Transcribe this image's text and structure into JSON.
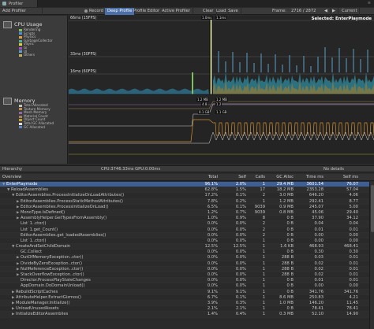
{
  "window": {
    "tab_title": "Profiler"
  },
  "toolbar": {
    "add_profiler": "Add Profiler",
    "record": "Record",
    "deep_profile": "Deep Profile",
    "profile_editor": "Profile Editor",
    "active_profiler": "Active Profiler",
    "clear": "Clear",
    "load": "Load",
    "save": "Save",
    "frame_label": "Frame:",
    "frame_value": "2716 / 2872",
    "selected": "Selected: EnterPlaymode"
  },
  "cpu_panel": {
    "title": "CPU Usage",
    "items": [
      {
        "label": "Rendering",
        "color": "#86c060"
      },
      {
        "label": "Scripts",
        "color": "#4a90d9"
      },
      {
        "label": "Physics",
        "color": "#e0a040"
      },
      {
        "label": "GarbageCollector",
        "color": "#50b0a0"
      },
      {
        "label": "VSync",
        "color": "#e0d040"
      },
      {
        "label": "Gi",
        "color": "#a050c0"
      },
      {
        "label": "UI",
        "color": "#60a0c0"
      },
      {
        "label": "Others",
        "color": "#c0b060"
      }
    ]
  },
  "memory_panel": {
    "title": "Memory",
    "items": [
      {
        "label": "Total Allocated",
        "color": "#c0c0c0"
      },
      {
        "label": "Texture Memory",
        "color": "#c09040"
      },
      {
        "label": "Mesh Memory",
        "color": "#8a6aa0"
      },
      {
        "label": "Material Count",
        "color": "#a08060"
      },
      {
        "label": "Object Count",
        "color": "#c0a030"
      },
      {
        "label": "Total GC Allocated",
        "color": "#e0e0e0"
      },
      {
        "label": "GC Allocated",
        "color": "#6080c0"
      }
    ]
  },
  "chart_labels": {
    "ms66": "66ms (15FPS)",
    "ms33": "33ms (30FPS)",
    "ms16": "16ms (60FPS)",
    "cursor_top": "1.0ms",
    "cursor_mid": "1.1ms",
    "mem_a": "1.2 MB",
    "mem_b": "4.8",
    "mem_c": "1.2 MB",
    "mem_d": "0.1 GB",
    "mem_e": "1.2",
    "mem_f": "1.1 GB"
  },
  "lower_toolbar": {
    "view": "Hierarchy",
    "cpu": "CPU:3746.33ms  GPU:0.00ms",
    "details": "No details"
  },
  "table": {
    "headers": [
      "Overview",
      "Total",
      "Self",
      "Calls",
      "GC Alloc",
      "Time ms",
      "Self ms"
    ],
    "rows": [
      {
        "name": "EnterPlaymode",
        "indent": 0,
        "arrow": "▼",
        "total": "96.1%",
        "self": "2.0%",
        "calls": "1",
        "gc": "29.4 MB",
        "time": "3601.54",
        "selfms": "76.07",
        "selected": true
      },
      {
        "name": "ReloadAssemblies",
        "indent": 1,
        "arrow": "▼",
        "total": "62.8%",
        "self": "1.5%",
        "calls": "17",
        "gc": "18.2 MB",
        "time": "2353.28",
        "selfms": "57.04"
      },
      {
        "name": "EditorAssemblies.ProcessInitializeOnLoadAttributes()",
        "indent": 2,
        "arrow": "▼",
        "total": "17.2%",
        "self": "0.1%",
        "calls": "2",
        "gc": "3.0 MB",
        "time": "646.20",
        "selfms": "4.06"
      },
      {
        "name": "EditorAssemblies.ProcessStaticMethodAttributes()",
        "indent": 3,
        "arrow": "▶",
        "total": "7.8%",
        "self": "0.2%",
        "calls": "1",
        "gc": "1.2 MB",
        "time": "292.41",
        "selfms": "8.77"
      },
      {
        "name": "EditorAssemblies.ProcessInitializeOnLoad()",
        "indent": 3,
        "arrow": "▶",
        "total": "6.5%",
        "self": "0.1%",
        "calls": "9039",
        "gc": "0.9 MB",
        "time": "245.07",
        "selfms": "5.00"
      },
      {
        "name": "MonoType.IsDefined()",
        "indent": 3,
        "arrow": "▶",
        "total": "1.2%",
        "self": "0.7%",
        "calls": "9039",
        "gc": "0.8 MB",
        "time": "45.06",
        "selfms": "29.40"
      },
      {
        "name": "AssemblyHelper.GetTypesFromAssembly()",
        "indent": 3,
        "arrow": "▶",
        "total": "1.0%",
        "self": "0.9%",
        "calls": "8",
        "gc": "0 B",
        "time": "37.90",
        "selfms": "34.12"
      },
      {
        "name": "List`1..ctor()",
        "indent": 3,
        "arrow": "",
        "total": "0.0%",
        "self": "0.0%",
        "calls": "2",
        "gc": "0 B",
        "time": "0.04",
        "selfms": "0.04"
      },
      {
        "name": "List`1.get_Count()",
        "indent": 3,
        "arrow": "",
        "total": "0.0%",
        "self": "0.0%",
        "calls": "2",
        "gc": "0 B",
        "time": "0.01",
        "selfms": "0.01"
      },
      {
        "name": "EditorAssemblies.get_loadedAssemblies()",
        "indent": 3,
        "arrow": "",
        "total": "0.0%",
        "self": "0.0%",
        "calls": "2",
        "gc": "0 B",
        "time": "0.00",
        "selfms": "0.00"
      },
      {
        "name": "List`1..ctor()",
        "indent": 3,
        "arrow": "",
        "total": "0.0%",
        "self": "0.0%",
        "calls": "1",
        "gc": "0 B",
        "time": "0.00",
        "selfms": "0.00"
      },
      {
        "name": "CreateAndSetChildDomain",
        "indent": 2,
        "arrow": "▼",
        "total": "12.5%",
        "self": "12.5%",
        "calls": "1",
        "gc": "1.6 KB",
        "time": "468.93",
        "selfms": "468.41"
      },
      {
        "name": "GC.Collect",
        "indent": 3,
        "arrow": "",
        "total": "0.0%",
        "self": "0.0%",
        "calls": "1",
        "gc": "0 B",
        "time": "0.30",
        "selfms": "0.30"
      },
      {
        "name": "OutOfMemoryException..ctor()",
        "indent": 3,
        "arrow": "▶",
        "total": "0.0%",
        "self": "0.0%",
        "calls": "1",
        "gc": "288 B",
        "time": "0.03",
        "selfms": "0.01"
      },
      {
        "name": "DivideByZeroException..ctor()",
        "indent": 3,
        "arrow": "▶",
        "total": "0.0%",
        "self": "0.0%",
        "calls": "1",
        "gc": "288 B",
        "time": "0.02",
        "selfms": "0.01"
      },
      {
        "name": "NullReferenceException..ctor()",
        "indent": 3,
        "arrow": "▶",
        "total": "0.0%",
        "self": "0.0%",
        "calls": "1",
        "gc": "288 B",
        "time": "0.02",
        "selfms": "0.01"
      },
      {
        "name": "StackOverflowException..ctor()",
        "indent": 3,
        "arrow": "▶",
        "total": "0.0%",
        "self": "0.0%",
        "calls": "1",
        "gc": "288 B",
        "time": "0.02",
        "selfms": "0.01"
      },
      {
        "name": "Director.ProcessPlayStateChanges",
        "indent": 3,
        "arrow": "",
        "total": "0.0%",
        "self": "0.0%",
        "calls": "1",
        "gc": "0 B",
        "time": "0.01",
        "selfms": "0.01"
      },
      {
        "name": "AppDomain.DoDomainUnload()",
        "indent": 3,
        "arrow": "",
        "total": "0.0%",
        "self": "0.0%",
        "calls": "1",
        "gc": "0 B",
        "time": "0.00",
        "selfms": "0.00"
      },
      {
        "name": "RebuildScriptCaches",
        "indent": 2,
        "arrow": "▶",
        "total": "9.1%",
        "self": "9.1%",
        "calls": "1",
        "gc": "0 B",
        "time": "341.76",
        "selfms": "341.76"
      },
      {
        "name": "AttributeHelper.ExtractGizmos()",
        "indent": 2,
        "arrow": "▶",
        "total": "6.7%",
        "self": "0.1%",
        "calls": "1",
        "gc": "8.6 MB",
        "time": "250.83",
        "selfms": "4.21"
      },
      {
        "name": "ModuleManager.Initialize()",
        "indent": 2,
        "arrow": "▶",
        "total": "3.9%",
        "self": "0.3%",
        "calls": "1",
        "gc": "1.0 MB",
        "time": "146.20",
        "selfms": "11.45"
      },
      {
        "name": "UnloadUnusedAssets",
        "indent": 2,
        "arrow": "▶",
        "total": "2.1%",
        "self": "2.1%",
        "calls": "1",
        "gc": "0 B",
        "time": "78.41",
        "selfms": "78.41"
      },
      {
        "name": "InitializeEditorAssemblies",
        "indent": 2,
        "arrow": "▶",
        "total": "1.4%",
        "self": "0.4%",
        "calls": "1",
        "gc": "0.3 MB",
        "time": "52.10",
        "selfms": "14.90"
      }
    ]
  }
}
